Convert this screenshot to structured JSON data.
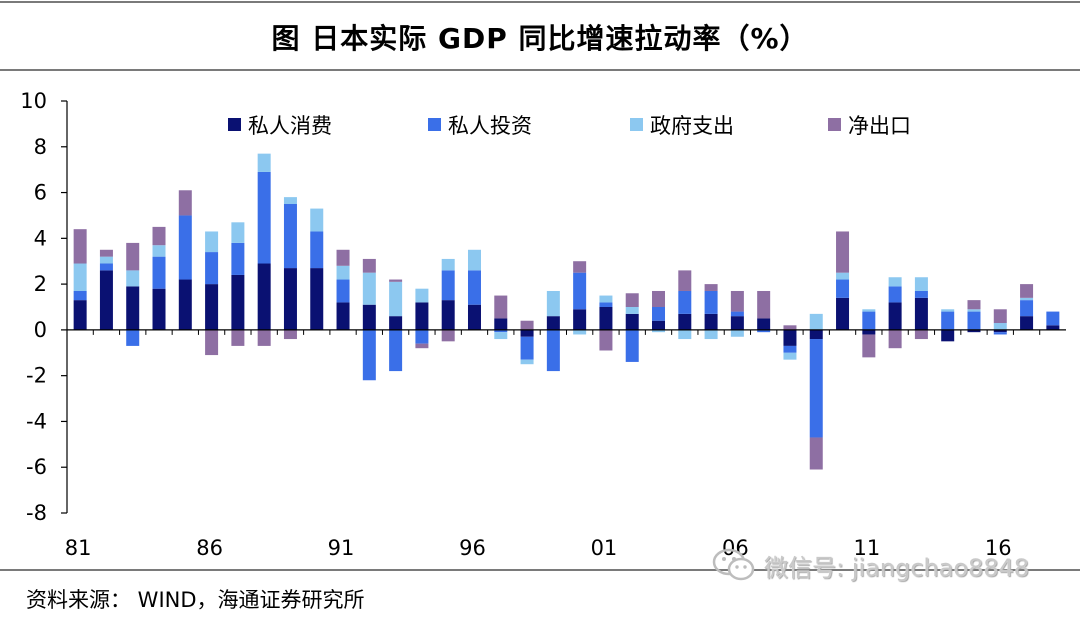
{
  "chart_data": {
    "type": "bar",
    "stacked": true,
    "title": "图 日本实际 GDP 同比增速拉动率（%）",
    "ylim": [
      -8,
      10
    ],
    "yticks": [
      "10",
      "8",
      "6",
      "4",
      "2",
      "0",
      "-2",
      "-4",
      "-6",
      "-8"
    ],
    "xtick_labels": [
      {
        "year": 1981,
        "label": "81"
      },
      {
        "year": 1986,
        "label": "86"
      },
      {
        "year": 1991,
        "label": "91"
      },
      {
        "year": 1996,
        "label": "96"
      },
      {
        "year": 2001,
        "label": "01"
      },
      {
        "year": 2006,
        "label": "06"
      },
      {
        "year": 2011,
        "label": "11"
      },
      {
        "year": 2016,
        "label": "16"
      }
    ],
    "legend_position": "top",
    "grid": false,
    "categories": [
      1981,
      1982,
      1983,
      1984,
      1985,
      1986,
      1987,
      1988,
      1989,
      1990,
      1991,
      1992,
      1993,
      1994,
      1995,
      1996,
      1997,
      1998,
      1999,
      2000,
      2001,
      2002,
      2003,
      2004,
      2005,
      2006,
      2007,
      2008,
      2009,
      2010,
      2011,
      2012,
      2013,
      2014,
      2015,
      2016,
      2017,
      2018
    ],
    "series": [
      {
        "name": "私人消费",
        "color": "#0a1172",
        "values": [
          1.3,
          2.6,
          1.9,
          1.8,
          2.2,
          2.0,
          2.4,
          2.9,
          2.7,
          2.7,
          1.2,
          1.1,
          0.6,
          1.2,
          1.3,
          1.1,
          0.5,
          -0.3,
          0.6,
          0.9,
          1.0,
          0.7,
          0.4,
          0.7,
          0.7,
          0.6,
          0.5,
          -0.7,
          -0.4,
          1.4,
          -0.2,
          1.2,
          1.4,
          -0.5,
          -0.1,
          -0.1,
          0.6,
          0.2
        ]
      },
      {
        "name": "私人投资",
        "color": "#3a6fe8",
        "values": [
          0.4,
          0.3,
          -0.7,
          1.4,
          2.8,
          1.4,
          1.4,
          4.0,
          2.8,
          1.6,
          1.0,
          -2.2,
          -1.8,
          -0.6,
          1.3,
          1.5,
          -0.1,
          -1.0,
          -1.8,
          1.6,
          0.2,
          -1.4,
          0.6,
          1.0,
          1.0,
          0.2,
          -0.1,
          -0.3,
          -4.3,
          0.8,
          0.8,
          0.7,
          0.3,
          0.8,
          0.8,
          -0.1,
          0.7,
          0.6
        ]
      },
      {
        "name": "政府支出",
        "color": "#8cc8f0",
        "values": [
          1.2,
          0.3,
          0.7,
          0.5,
          0.0,
          0.9,
          0.9,
          0.8,
          0.3,
          1.0,
          0.6,
          1.4,
          1.5,
          0.6,
          0.5,
          0.9,
          -0.3,
          -0.2,
          1.1,
          -0.2,
          0.3,
          0.3,
          -0.1,
          -0.4,
          -0.4,
          -0.3,
          0.0,
          -0.3,
          0.7,
          0.3,
          0.1,
          0.4,
          0.6,
          0.1,
          0.1,
          0.3,
          0.1,
          0.0
        ]
      },
      {
        "name": "净出口",
        "color": "#8e6fa3",
        "values": [
          1.5,
          0.3,
          1.2,
          0.8,
          1.1,
          -1.1,
          -0.7,
          -0.7,
          -0.4,
          0.0,
          0.7,
          0.6,
          0.1,
          -0.2,
          -0.5,
          0.0,
          1.0,
          0.4,
          0.0,
          0.5,
          -0.9,
          0.6,
          0.7,
          0.9,
          0.3,
          0.9,
          1.2,
          0.2,
          -1.4,
          1.8,
          -1.0,
          -0.8,
          -0.4,
          0.0,
          0.4,
          0.6,
          0.6,
          0.0
        ]
      }
    ]
  },
  "source_note": "资料来源： WIND，海通证券研究所",
  "watermark": {
    "text": "微信号: jiangchao8848",
    "icon": "wechat-icon"
  }
}
